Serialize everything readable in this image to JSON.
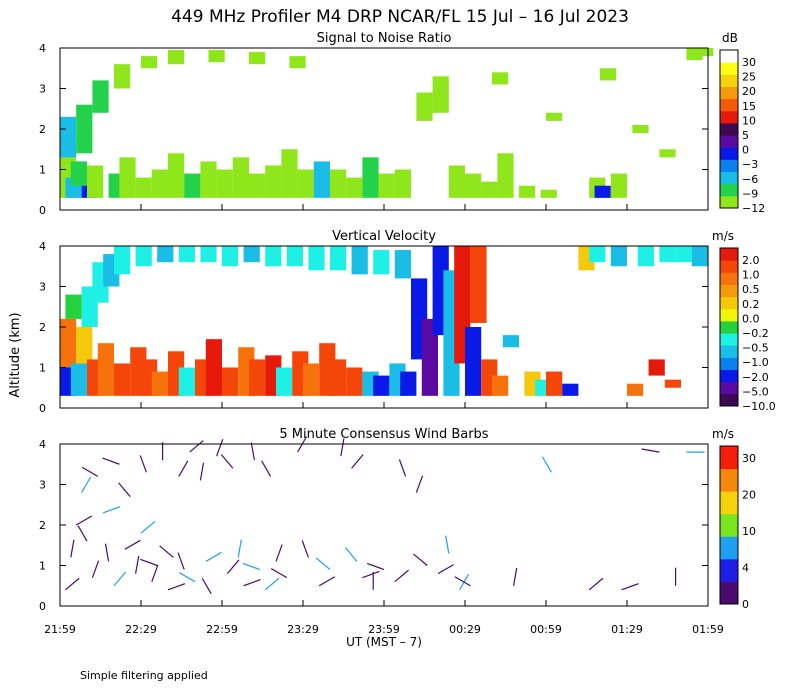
{
  "figure": {
    "title": "449 MHz Profiler M4 DRP NCAR/FL 15 Jul – 16 Jul 2023",
    "ylabel": "Altitude (km)",
    "xlabel": "UT  (MST – 7)",
    "footnote": "Simple filtering applied"
  },
  "palette": {
    "snr": [
      "#8fe61a",
      "#23d24a",
      "#19bde6",
      "#0a82ee",
      "#0a1ae6",
      "#5a0aa0",
      "#3c0a50",
      "#e61a0a",
      "#f55a0a",
      "#f59a0a",
      "#f5d20a",
      "#ffff14",
      "#ffffff"
    ],
    "vv": [
      "#3c0a50",
      "#5a0aa0",
      "#0a1ae6",
      "#0a82ee",
      "#19bde6",
      "#1ef0e6",
      "#23d23c",
      "#f0f50a",
      "#f5c80a",
      "#f59a0a",
      "#f5730a",
      "#f5460a",
      "#e61a0a"
    ],
    "wind": [
      "#4b0a6e",
      "#1e1ee6",
      "#1ea0f0",
      "#78e61e",
      "#f5d20a",
      "#f5870a",
      "#f51e0a"
    ]
  },
  "chart_data": [
    {
      "type": "heatmap",
      "title": "Signal to Noise Ratio",
      "ylabel": "Altitude (km)",
      "xlabel": "UT  (MST – 7)",
      "ylim": [
        0,
        4
      ],
      "y_ticks": [
        "0",
        "1",
        "2",
        "3",
        "4"
      ],
      "x_ticks": [
        "21:59",
        "22:29",
        "22:59",
        "23:29",
        "23:59",
        "00:29",
        "00:59",
        "01:29",
        "01:59"
      ],
      "x_range_minutes": [
        0,
        240
      ],
      "colorbar_unit": "dB",
      "colorbar_labels": [
        "30",
        "25",
        "20",
        "15",
        "10",
        "5",
        "0",
        "−3",
        "−6",
        "−9",
        "−12"
      ],
      "colorbar_values": [
        30,
        25,
        20,
        15,
        10,
        5,
        0,
        -3,
        -6,
        -9,
        -12
      ],
      "cells": [
        [
          0,
          0.3,
          1.7,
          -12
        ],
        [
          0,
          1.3,
          2.3,
          -6
        ],
        [
          2,
          0.3,
          0.8,
          -6
        ],
        [
          4,
          0.6,
          1.2,
          -9
        ],
        [
          6,
          1.4,
          2.6,
          -9
        ],
        [
          12,
          2.4,
          3.2,
          -9
        ],
        [
          20,
          3.0,
          3.6,
          -12
        ],
        [
          30,
          3.5,
          3.8,
          -12
        ],
        [
          40,
          3.6,
          3.95,
          -12
        ],
        [
          55,
          3.65,
          3.95,
          -12
        ],
        [
          70,
          3.6,
          3.9,
          -12
        ],
        [
          85,
          3.5,
          3.8,
          -12
        ],
        [
          8,
          0.3,
          0.6,
          -3
        ],
        [
          10,
          0.3,
          1.1,
          -12
        ],
        [
          18,
          0.3,
          0.9,
          -9
        ],
        [
          22,
          0.3,
          1.3,
          -12
        ],
        [
          28,
          0.3,
          0.8,
          -12
        ],
        [
          34,
          0.3,
          1.0,
          -12
        ],
        [
          40,
          0.3,
          1.4,
          -12
        ],
        [
          46,
          0.3,
          0.9,
          -9
        ],
        [
          52,
          0.3,
          1.2,
          -12
        ],
        [
          58,
          0.3,
          1.0,
          -12
        ],
        [
          64,
          0.3,
          1.3,
          -12
        ],
        [
          70,
          0.3,
          0.9,
          -12
        ],
        [
          76,
          0.3,
          1.1,
          -12
        ],
        [
          82,
          0.3,
          1.5,
          -12
        ],
        [
          88,
          0.3,
          1.0,
          -12
        ],
        [
          94,
          0.3,
          1.2,
          -6
        ],
        [
          100,
          0.3,
          1.0,
          -12
        ],
        [
          106,
          0.3,
          0.8,
          -12
        ],
        [
          112,
          0.3,
          1.3,
          -9
        ],
        [
          118,
          0.3,
          0.9,
          -12
        ],
        [
          124,
          0.3,
          1.0,
          -12
        ],
        [
          132,
          2.2,
          2.9,
          -12
        ],
        [
          138,
          2.4,
          3.3,
          -12
        ],
        [
          144,
          0.3,
          1.1,
          -12
        ],
        [
          150,
          0.3,
          0.9,
          -12
        ],
        [
          156,
          0.3,
          0.7,
          -12
        ],
        [
          162,
          0.3,
          1.4,
          -12
        ],
        [
          170,
          0.3,
          0.6,
          -12
        ],
        [
          178,
          0.3,
          0.5,
          -12
        ],
        [
          160,
          3.1,
          3.4,
          -12
        ],
        [
          196,
          0.3,
          0.8,
          -12
        ],
        [
          198,
          0.3,
          0.6,
          -3
        ],
        [
          200,
          3.2,
          3.5,
          -12
        ],
        [
          204,
          0.3,
          0.9,
          -12
        ],
        [
          212,
          1.9,
          2.1,
          -12
        ],
        [
          232,
          3.7,
          4.0,
          -12
        ],
        [
          236,
          3.8,
          4.0,
          -12
        ],
        [
          222,
          1.3,
          1.5,
          -12
        ],
        [
          180,
          2.2,
          2.4,
          -12
        ]
      ]
    },
    {
      "type": "heatmap",
      "title": "Vertical Velocity",
      "ylabel": "Altitude (km)",
      "xlabel": "UT  (MST – 7)",
      "ylim": [
        0,
        4
      ],
      "y_ticks": [
        "0",
        "1",
        "2",
        "3",
        "4"
      ],
      "x_ticks": [
        "21:59",
        "22:29",
        "22:59",
        "23:29",
        "23:59",
        "00:29",
        "00:59",
        "01:29",
        "01:59"
      ],
      "x_range_minutes": [
        0,
        240
      ],
      "colorbar_unit": "m/s",
      "colorbar_labels": [
        "2.0",
        "1.0",
        "0.5",
        "0.2",
        "0.0",
        "−0.2",
        "−0.5",
        "−1.0",
        "−2.0",
        "−5.0",
        "−10.0"
      ],
      "colorbar_values": [
        2.0,
        1.0,
        0.5,
        0.2,
        0.0,
        -0.2,
        -0.5,
        -1.0,
        -2.0,
        -5.0,
        -10.0
      ],
      "cells": [
        [
          0,
          0.3,
          1.0,
          -2.0
        ],
        [
          0,
          1.0,
          2.2,
          0.5
        ],
        [
          2,
          2.2,
          2.8,
          -0.2
        ],
        [
          4,
          0.3,
          1.1,
          -1.0
        ],
        [
          6,
          1.1,
          2.0,
          0.2
        ],
        [
          8,
          2.0,
          3.0,
          -0.5
        ],
        [
          12,
          2.6,
          3.6,
          -0.5
        ],
        [
          16,
          3.0,
          3.8,
          -1.0
        ],
        [
          20,
          3.3,
          4.0,
          -0.5
        ],
        [
          28,
          3.5,
          4.0,
          -0.5
        ],
        [
          36,
          3.6,
          4.0,
          -1.0
        ],
        [
          44,
          3.6,
          4.0,
          -0.5
        ],
        [
          52,
          3.6,
          4.0,
          -0.5
        ],
        [
          60,
          3.5,
          4.0,
          -0.5
        ],
        [
          68,
          3.6,
          4.0,
          -1.0
        ],
        [
          76,
          3.5,
          4.0,
          -0.5
        ],
        [
          84,
          3.5,
          4.0,
          -0.5
        ],
        [
          92,
          3.4,
          4.0,
          -0.5
        ],
        [
          100,
          3.4,
          4.0,
          -0.5
        ],
        [
          108,
          3.3,
          4.0,
          -1.0
        ],
        [
          116,
          3.3,
          3.9,
          -0.5
        ],
        [
          124,
          3.2,
          3.9,
          -1.0
        ],
        [
          10,
          0.3,
          1.2,
          1.0
        ],
        [
          14,
          0.3,
          1.6,
          0.5
        ],
        [
          20,
          0.3,
          1.1,
          1.0
        ],
        [
          26,
          0.3,
          1.5,
          1.0
        ],
        [
          30,
          0.3,
          1.2,
          1.0
        ],
        [
          34,
          0.3,
          0.9,
          0.5
        ],
        [
          40,
          0.3,
          1.4,
          1.0
        ],
        [
          44,
          0.3,
          1.0,
          -0.5
        ],
        [
          50,
          0.3,
          1.2,
          1.0
        ],
        [
          54,
          0.3,
          1.7,
          2.0
        ],
        [
          60,
          0.3,
          1.0,
          1.0
        ],
        [
          66,
          0.3,
          1.5,
          0.5
        ],
        [
          70,
          0.3,
          1.2,
          1.0
        ],
        [
          76,
          0.3,
          1.3,
          2.0
        ],
        [
          80,
          0.3,
          1.0,
          -0.5
        ],
        [
          86,
          0.3,
          1.4,
          1.0
        ],
        [
          90,
          0.3,
          1.1,
          0.5
        ],
        [
          96,
          0.3,
          1.6,
          1.0
        ],
        [
          100,
          0.3,
          1.2,
          1.0
        ],
        [
          106,
          0.3,
          1.0,
          1.0
        ],
        [
          112,
          0.3,
          0.9,
          -1.0
        ],
        [
          116,
          0.3,
          0.8,
          -2.0
        ],
        [
          122,
          0.3,
          1.1,
          -1.0
        ],
        [
          126,
          0.3,
          0.9,
          -2.0
        ],
        [
          130,
          1.2,
          3.2,
          -2.0
        ],
        [
          134,
          0.3,
          2.2,
          -5.0
        ],
        [
          138,
          1.8,
          4.0,
          -2.0
        ],
        [
          142,
          0.3,
          3.4,
          -1.0
        ],
        [
          146,
          1.1,
          4.0,
          2.0
        ],
        [
          150,
          0.3,
          2.0,
          -2.0
        ],
        [
          152,
          2.1,
          4.0,
          1.0
        ],
        [
          156,
          0.3,
          1.2,
          1.0
        ],
        [
          160,
          0.3,
          0.8,
          0.5
        ],
        [
          164,
          1.5,
          1.8,
          -1.0
        ],
        [
          172,
          0.3,
          0.9,
          0.2
        ],
        [
          176,
          0.3,
          0.7,
          -0.5
        ],
        [
          180,
          0.3,
          0.9,
          1.0
        ],
        [
          186,
          0.3,
          0.6,
          -2.0
        ],
        [
          192,
          3.4,
          4.0,
          0.2
        ],
        [
          196,
          3.6,
          4.0,
          -0.5
        ],
        [
          204,
          3.5,
          4.0,
          -1.0
        ],
        [
          210,
          0.3,
          0.6,
          0.5
        ],
        [
          214,
          3.5,
          4.0,
          -0.5
        ],
        [
          218,
          0.8,
          1.2,
          2.0
        ],
        [
          222,
          3.6,
          4.0,
          -0.5
        ],
        [
          228,
          3.6,
          4.0,
          -0.5
        ],
        [
          234,
          3.5,
          4.0,
          -1.0
        ],
        [
          224,
          0.5,
          0.7,
          1.0
        ]
      ]
    },
    {
      "type": "scatter",
      "title": "5 Minute Consensus Wind Barbs",
      "ylabel": "Altitude (km)",
      "xlabel": "UT  (MST – 7)",
      "ylim": [
        0,
        4
      ],
      "y_ticks": [
        "0",
        "1",
        "2",
        "3",
        "4"
      ],
      "x_ticks": [
        "21:59",
        "22:29",
        "22:59",
        "23:29",
        "23:59",
        "00:29",
        "00:59",
        "01:29",
        "01:59"
      ],
      "x_range_minutes": [
        0,
        240
      ],
      "colorbar_unit": "m/s",
      "colorbar_labels": [
        "30",
        "20",
        "10",
        "4",
        "0"
      ],
      "colorbar_values": [
        30,
        20,
        10,
        4,
        0
      ],
      "barbs": [
        [
          2,
          0.4,
          2,
          40
        ],
        [
          4,
          1.2,
          3,
          80
        ],
        [
          6,
          2.0,
          3,
          30
        ],
        [
          8,
          2.8,
          6,
          60
        ],
        [
          10,
          1.6,
          3,
          120
        ],
        [
          12,
          0.7,
          2,
          70
        ],
        [
          14,
          3.2,
          2,
          150
        ],
        [
          16,
          2.3,
          4,
          20
        ],
        [
          18,
          1.1,
          3,
          100
        ],
        [
          20,
          0.5,
          6,
          50
        ],
        [
          22,
          3.5,
          2,
          160
        ],
        [
          24,
          1.4,
          2,
          30
        ],
        [
          26,
          2.7,
          3,
          130
        ],
        [
          28,
          0.8,
          2,
          80
        ],
        [
          30,
          1.8,
          7,
          40
        ],
        [
          32,
          3.3,
          2,
          110
        ],
        [
          34,
          0.6,
          3,
          70
        ],
        [
          36,
          1.0,
          2,
          160
        ],
        [
          38,
          3.6,
          3,
          90
        ],
        [
          40,
          0.4,
          2,
          20
        ],
        [
          42,
          1.2,
          3,
          140
        ],
        [
          44,
          3.2,
          2,
          60
        ],
        [
          46,
          0.9,
          2,
          110
        ],
        [
          48,
          3.8,
          3,
          40
        ],
        [
          50,
          0.6,
          6,
          150
        ],
        [
          52,
          3.1,
          2,
          80
        ],
        [
          54,
          1.1,
          7,
          30
        ],
        [
          56,
          0.3,
          3,
          120
        ],
        [
          58,
          3.7,
          2,
          70
        ],
        [
          62,
          0.8,
          3,
          50
        ],
        [
          64,
          3.4,
          2,
          130
        ],
        [
          66,
          1.2,
          6,
          80
        ],
        [
          68,
          0.5,
          2,
          20
        ],
        [
          72,
          3.6,
          3,
          100
        ],
        [
          74,
          0.9,
          7,
          160
        ],
        [
          76,
          0.4,
          6,
          40
        ],
        [
          78,
          3.2,
          2,
          120
        ],
        [
          80,
          1.1,
          3,
          70
        ],
        [
          84,
          0.7,
          2,
          150
        ],
        [
          88,
          3.8,
          3,
          60
        ],
        [
          92,
          1.2,
          2,
          110
        ],
        [
          96,
          0.5,
          3,
          30
        ],
        [
          100,
          0.9,
          7,
          140
        ],
        [
          104,
          3.7,
          2,
          80
        ],
        [
          108,
          3.4,
          2,
          50
        ],
        [
          110,
          1.1,
          6,
          130
        ],
        [
          112,
          0.7,
          2,
          20
        ],
        [
          116,
          0.4,
          3,
          90
        ],
        [
          120,
          0.9,
          2,
          160
        ],
        [
          124,
          0.6,
          2,
          40
        ],
        [
          128,
          3.2,
          2,
          110
        ],
        [
          132,
          2.8,
          2,
          70
        ],
        [
          136,
          1.0,
          2,
          140
        ],
        [
          140,
          0.8,
          3,
          30
        ],
        [
          144,
          1.3,
          5,
          100
        ],
        [
          148,
          0.4,
          6,
          60
        ],
        [
          152,
          0.5,
          2,
          150
        ],
        [
          168,
          0.5,
          2,
          80
        ],
        [
          182,
          3.3,
          6,
          120
        ],
        [
          196,
          0.4,
          2,
          40
        ],
        [
          208,
          0.4,
          2,
          20
        ],
        [
          222,
          3.8,
          2,
          170
        ],
        [
          228,
          0.5,
          2,
          90
        ],
        [
          232,
          3.8,
          4,
          0
        ]
      ]
    }
  ]
}
